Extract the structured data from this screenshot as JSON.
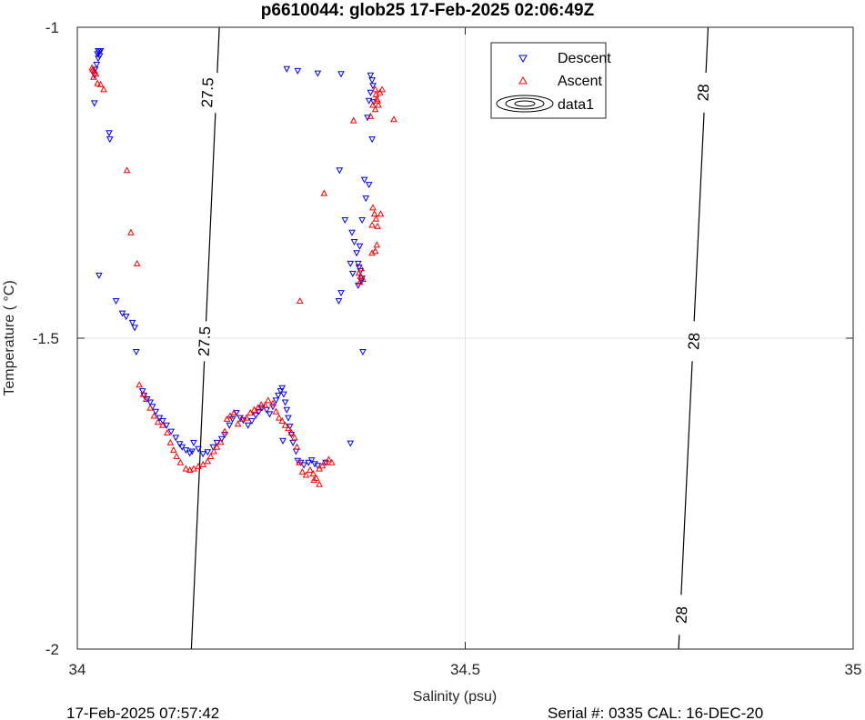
{
  "chart_data": {
    "type": "scatter",
    "title": "p6610044: glob25 17-Feb-2025 02:06:49Z",
    "xlabel": "Salinity (psu)",
    "ylabel": "Temperature (   °C)",
    "xlim": [
      34,
      35
    ],
    "ylim": [
      -2,
      -1
    ],
    "xticks": [
      34,
      34.5,
      35
    ],
    "xtick_labels": [
      "34",
      "34.5",
      "35"
    ],
    "yticks": [
      -2,
      -1.5,
      -1
    ],
    "ytick_labels": [
      "-2",
      "-1.5",
      "-1"
    ],
    "grid": true,
    "legend_position": "top-right",
    "legend": [
      "Descent",
      "Ascent",
      "data1"
    ],
    "footer_left": "17-Feb-2025 07:57:42",
    "footer_right": "Serial #: 0335  CAL: 16-DEC-20",
    "contours": [
      {
        "label": "27.5",
        "points": [
          [
            34.147,
            -2.0
          ],
          [
            34.183,
            -1.0
          ]
        ],
        "label_positions": [
          [
            34.168,
            -1.105
          ],
          [
            34.164,
            -1.505
          ]
        ]
      },
      {
        "label": "28",
        "points": [
          [
            34.775,
            -2.0
          ],
          [
            34.813,
            -1.0
          ]
        ],
        "label_positions": [
          [
            34.807,
            -1.105
          ],
          [
            34.795,
            -1.505
          ],
          [
            34.779,
            -1.945
          ]
        ]
      }
    ],
    "series": [
      {
        "name": "Descent",
        "color": "#0000ff",
        "marker": "triangle-down",
        "points": [
          [
            34.027,
            -1.038
          ],
          [
            34.028,
            -1.04
          ],
          [
            34.03,
            -1.038
          ],
          [
            34.026,
            -1.043
          ],
          [
            34.029,
            -1.046
          ],
          [
            34.027,
            -1.05
          ],
          [
            34.025,
            -1.06
          ],
          [
            34.023,
            -1.068
          ],
          [
            34.022,
            -1.077
          ],
          [
            34.022,
            -1.122
          ],
          [
            34.041,
            -1.17
          ],
          [
            34.042,
            -1.18
          ],
          [
            34.028,
            -1.399
          ],
          [
            34.05,
            -1.44
          ],
          [
            34.058,
            -1.46
          ],
          [
            34.063,
            -1.465
          ],
          [
            34.071,
            -1.475
          ],
          [
            34.074,
            -1.483
          ],
          [
            34.076,
            -1.522
          ],
          [
            34.084,
            -1.585
          ],
          [
            34.086,
            -1.592
          ],
          [
            34.09,
            -1.598
          ],
          [
            34.094,
            -1.603
          ],
          [
            34.097,
            -1.61
          ],
          [
            34.101,
            -1.618
          ],
          [
            34.106,
            -1.628
          ],
          [
            34.11,
            -1.633
          ],
          [
            34.115,
            -1.64
          ],
          [
            34.121,
            -1.65
          ],
          [
            34.127,
            -1.66
          ],
          [
            34.132,
            -1.67
          ],
          [
            34.135,
            -1.675
          ],
          [
            34.14,
            -1.68
          ],
          [
            34.145,
            -1.685
          ],
          [
            34.148,
            -1.682
          ],
          [
            34.15,
            -1.668
          ],
          [
            34.156,
            -1.678
          ],
          [
            34.162,
            -1.686
          ],
          [
            34.168,
            -1.683
          ],
          [
            34.175,
            -1.675
          ],
          [
            34.18,
            -1.668
          ],
          [
            34.186,
            -1.662
          ],
          [
            34.19,
            -1.655
          ],
          [
            34.196,
            -1.64
          ],
          [
            34.2,
            -1.63
          ],
          [
            34.205,
            -1.62
          ],
          [
            34.21,
            -1.628
          ],
          [
            34.214,
            -1.632
          ],
          [
            34.22,
            -1.64
          ],
          [
            34.225,
            -1.633
          ],
          [
            34.23,
            -1.624
          ],
          [
            34.234,
            -1.618
          ],
          [
            34.238,
            -1.612
          ],
          [
            34.244,
            -1.615
          ],
          [
            34.248,
            -1.622
          ],
          [
            34.252,
            -1.61
          ],
          [
            34.256,
            -1.6
          ],
          [
            34.259,
            -1.592
          ],
          [
            34.262,
            -1.585
          ],
          [
            34.264,
            -1.58
          ],
          [
            34.266,
            -1.59
          ],
          [
            34.268,
            -1.603
          ],
          [
            34.27,
            -1.615
          ],
          [
            34.272,
            -1.628
          ],
          [
            34.274,
            -1.642
          ],
          [
            34.276,
            -1.655
          ],
          [
            34.278,
            -1.668
          ],
          [
            34.282,
            -1.682
          ],
          [
            34.284,
            -1.697
          ],
          [
            34.288,
            -1.7
          ],
          [
            34.292,
            -1.704
          ],
          [
            34.298,
            -1.7
          ],
          [
            34.302,
            -1.696
          ],
          [
            34.306,
            -1.702
          ],
          [
            34.31,
            -1.705
          ],
          [
            34.32,
            -1.7
          ],
          [
            34.352,
            -1.669
          ],
          [
            34.265,
            -1.665
          ],
          [
            34.27,
            -1.067
          ],
          [
            34.284,
            -1.07
          ],
          [
            34.31,
            -1.074
          ],
          [
            34.34,
            -1.075
          ],
          [
            34.378,
            -1.077
          ],
          [
            34.38,
            -1.085
          ],
          [
            34.381,
            -1.094
          ],
          [
            34.378,
            -1.105
          ],
          [
            34.376,
            -1.118
          ],
          [
            34.382,
            -1.12
          ],
          [
            34.374,
            -1.145
          ],
          [
            34.38,
            -1.18
          ],
          [
            34.338,
            -1.23
          ],
          [
            34.37,
            -1.245
          ],
          [
            34.376,
            -1.253
          ],
          [
            34.372,
            -1.275
          ],
          [
            34.345,
            -1.31
          ],
          [
            34.354,
            -1.33
          ],
          [
            34.367,
            -1.31
          ],
          [
            34.357,
            -1.345
          ],
          [
            34.364,
            -1.352
          ],
          [
            34.36,
            -1.363
          ],
          [
            34.352,
            -1.38
          ],
          [
            34.355,
            -1.396
          ],
          [
            34.362,
            -1.38
          ],
          [
            34.363,
            -1.386
          ],
          [
            34.365,
            -1.392
          ],
          [
            34.367,
            -1.404
          ],
          [
            34.362,
            -1.415
          ],
          [
            34.366,
            -1.408
          ],
          [
            34.34,
            -1.427
          ],
          [
            34.337,
            -1.44
          ],
          [
            34.368,
            -1.522
          ]
        ]
      },
      {
        "name": "Ascent",
        "color": "#ff0000",
        "marker": "triangle-up",
        "points": [
          [
            34.019,
            -1.065
          ],
          [
            34.02,
            -1.068
          ],
          [
            34.022,
            -1.07
          ],
          [
            34.024,
            -1.075
          ],
          [
            34.021,
            -1.08
          ],
          [
            34.026,
            -1.09
          ],
          [
            34.03,
            -1.092
          ],
          [
            34.034,
            -1.1
          ],
          [
            34.064,
            -1.23
          ],
          [
            34.069,
            -1.33
          ],
          [
            34.077,
            -1.38
          ],
          [
            34.08,
            -1.575
          ],
          [
            34.085,
            -1.59
          ],
          [
            34.089,
            -1.598
          ],
          [
            34.094,
            -1.612
          ],
          [
            34.099,
            -1.625
          ],
          [
            34.104,
            -1.635
          ],
          [
            34.11,
            -1.64
          ],
          [
            34.116,
            -1.652
          ],
          [
            34.12,
            -1.668
          ],
          [
            34.124,
            -1.68
          ],
          [
            34.128,
            -1.69
          ],
          [
            34.133,
            -1.7
          ],
          [
            34.14,
            -1.71
          ],
          [
            34.145,
            -1.712
          ],
          [
            34.15,
            -1.71
          ],
          [
            34.156,
            -1.706
          ],
          [
            34.162,
            -1.703
          ],
          [
            34.168,
            -1.698
          ],
          [
            34.172,
            -1.69
          ],
          [
            34.176,
            -1.682
          ],
          [
            34.18,
            -1.675
          ],
          [
            34.185,
            -1.667
          ],
          [
            34.19,
            -1.65
          ],
          [
            34.193,
            -1.63
          ],
          [
            34.197,
            -1.625
          ],
          [
            34.202,
            -1.62
          ],
          [
            34.207,
            -1.638
          ],
          [
            34.212,
            -1.63
          ],
          [
            34.218,
            -1.628
          ],
          [
            34.223,
            -1.62
          ],
          [
            34.228,
            -1.615
          ],
          [
            34.233,
            -1.612
          ],
          [
            34.237,
            -1.607
          ],
          [
            34.242,
            -1.608
          ],
          [
            34.246,
            -1.6
          ],
          [
            34.252,
            -1.605
          ],
          [
            34.256,
            -1.618
          ],
          [
            34.26,
            -1.628
          ],
          [
            34.264,
            -1.633
          ],
          [
            34.268,
            -1.64
          ],
          [
            34.272,
            -1.645
          ],
          [
            34.276,
            -1.652
          ],
          [
            34.28,
            -1.66
          ],
          [
            34.283,
            -1.675
          ],
          [
            34.286,
            -1.7
          ],
          [
            34.29,
            -1.715
          ],
          [
            34.295,
            -1.72
          ],
          [
            34.3,
            -1.712
          ],
          [
            34.304,
            -1.718
          ],
          [
            34.308,
            -1.725
          ],
          [
            34.312,
            -1.71
          ],
          [
            34.316,
            -1.705
          ],
          [
            34.32,
            -1.7
          ],
          [
            34.324,
            -1.695
          ],
          [
            34.328,
            -1.7
          ],
          [
            34.312,
            -1.735
          ],
          [
            34.305,
            -1.728
          ],
          [
            34.384,
            -1.1
          ],
          [
            34.385,
            -1.108
          ],
          [
            34.386,
            -1.115
          ],
          [
            34.387,
            -1.118
          ],
          [
            34.388,
            -1.125
          ],
          [
            34.384,
            -1.132
          ],
          [
            34.381,
            -1.125
          ],
          [
            34.39,
            -1.105
          ],
          [
            34.393,
            -1.1
          ],
          [
            34.408,
            -1.148
          ],
          [
            34.378,
            -1.143
          ],
          [
            34.356,
            -1.15
          ],
          [
            34.318,
            -1.267
          ],
          [
            34.381,
            -1.29
          ],
          [
            34.383,
            -1.3
          ],
          [
            34.385,
            -1.308
          ],
          [
            34.38,
            -1.318
          ],
          [
            34.387,
            -1.32
          ],
          [
            34.391,
            -1.3
          ],
          [
            34.386,
            -1.35
          ],
          [
            34.384,
            -1.36
          ],
          [
            34.38,
            -1.363
          ],
          [
            34.366,
            -1.388
          ],
          [
            34.363,
            -1.395
          ],
          [
            34.365,
            -1.4
          ],
          [
            34.368,
            -1.405
          ],
          [
            34.364,
            -1.41
          ],
          [
            34.287,
            -1.44
          ]
        ]
      }
    ]
  }
}
